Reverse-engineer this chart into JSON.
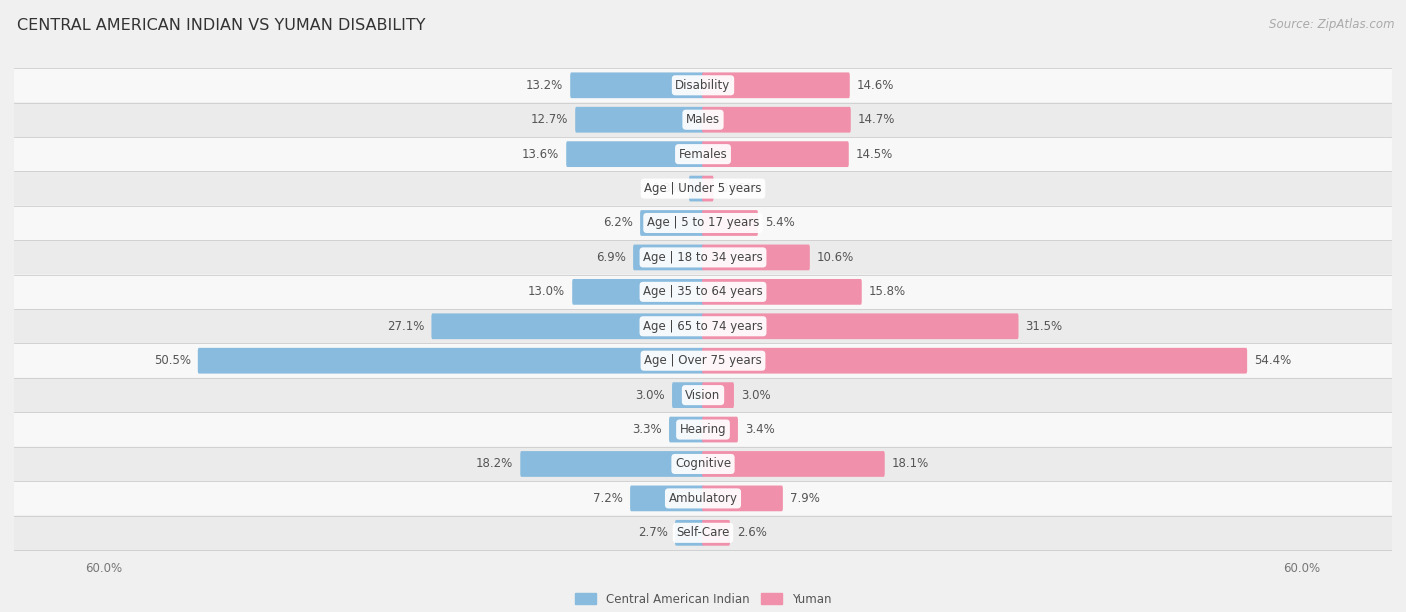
{
  "title": "CENTRAL AMERICAN INDIAN VS YUMAN DISABILITY",
  "source": "Source: ZipAtlas.com",
  "categories": [
    "Disability",
    "Males",
    "Females",
    "Age | Under 5 years",
    "Age | 5 to 17 years",
    "Age | 18 to 34 years",
    "Age | 35 to 64 years",
    "Age | 65 to 74 years",
    "Age | Over 75 years",
    "Vision",
    "Hearing",
    "Cognitive",
    "Ambulatory",
    "Self-Care"
  ],
  "left_values": [
    13.2,
    12.7,
    13.6,
    1.3,
    6.2,
    6.9,
    13.0,
    27.1,
    50.5,
    3.0,
    3.3,
    18.2,
    7.2,
    2.7
  ],
  "right_values": [
    14.6,
    14.7,
    14.5,
    0.95,
    5.4,
    10.6,
    15.8,
    31.5,
    54.4,
    3.0,
    3.4,
    18.1,
    7.9,
    2.6
  ],
  "left_color": "#88bbdd",
  "right_color": "#f090aa",
  "left_label": "Central American Indian",
  "right_label": "Yuman",
  "axis_max": 60.0,
  "bg_color": "#f0f0f0",
  "row_light": "#f8f8f8",
  "row_dark": "#ebebeb",
  "title_fontsize": 11.5,
  "source_fontsize": 8.5,
  "cat_fontsize": 8.5,
  "val_fontsize": 8.5
}
